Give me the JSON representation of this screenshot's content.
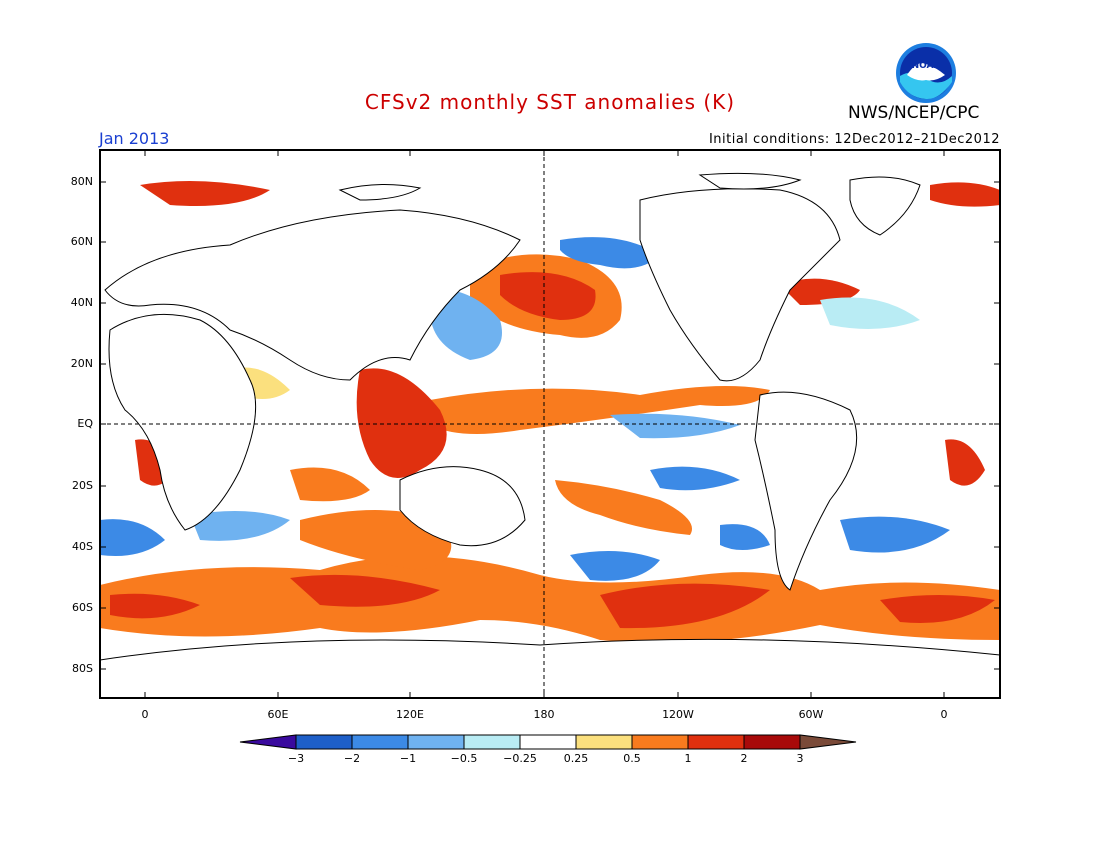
{
  "header": {
    "title": "CFSv2 monthly SST anomalies (K)",
    "month": "Jan 2013",
    "initial_conditions": "Initial conditions: 12Dec2012–21Dec2012",
    "agency": "NWS/NCEP/CPC",
    "logo_text": "NOAA"
  },
  "colors": {
    "title": "#cc0000",
    "month": "#1a3fd1",
    "land": "#ffffff",
    "neutral": "#ffffff",
    "cb": [
      "#3a0a9e",
      "#1e5fc8",
      "#3c8ae6",
      "#6fb2f0",
      "#b9ecf4",
      "#ffffff",
      "#fbe07e",
      "#f97b1e",
      "#e0300f",
      "#a80a0a",
      "#7a4a38"
    ]
  },
  "map": {
    "lat_ticks": [
      "80N",
      "60N",
      "40N",
      "20N",
      "EQ",
      "20S",
      "40S",
      "60S",
      "80S"
    ],
    "lon_ticks": [
      "0",
      "60E",
      "120E",
      "180",
      "120W",
      "60W",
      "0"
    ]
  },
  "colorbar": {
    "labels": [
      "−3",
      "−2",
      "−1",
      "−0.5",
      "−0.25",
      "0.25",
      "0.5",
      "1",
      "2",
      "3"
    ]
  }
}
